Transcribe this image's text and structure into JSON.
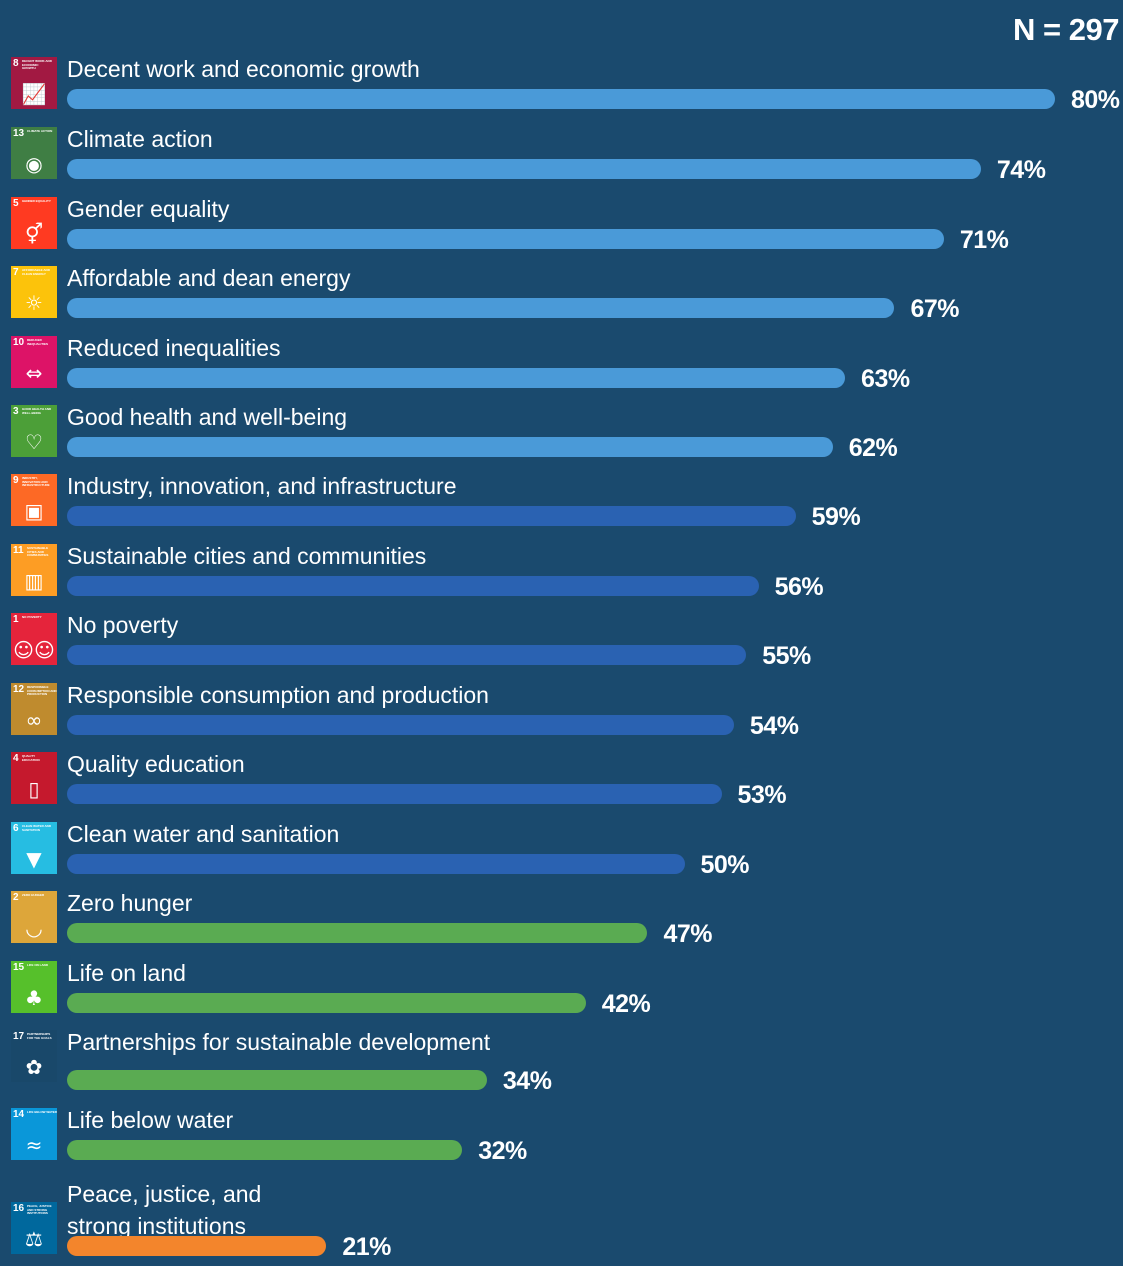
{
  "n_label": "N = 297",
  "colors": {
    "background": "#1a4a6e",
    "light_blue": "#4a9ad8",
    "dark_blue": "#2a62b2",
    "green": "#5aab52",
    "orange": "#f3852c"
  },
  "chart_data": {
    "type": "bar",
    "orientation": "horizontal",
    "title": "",
    "xlabel": "",
    "ylabel": "",
    "xlim": [
      0,
      100
    ],
    "unit": "%",
    "annotation": "N = 297",
    "categories": [
      "Decent work and economic growth",
      "Climate action",
      "Gender equality",
      "Affordable and dean energy",
      "Reduced inequalities",
      "Good health and well-being",
      "Industry, innovation, and infrastructure",
      "Sustainable cities and communities",
      "No poverty",
      "Responsible consumption and production",
      "Quality education",
      "Clean water and sanitation",
      "Zero hunger",
      "Life on land",
      "Partnerships for sustainable development",
      "Life below water",
      "Peace, justice, and\nstrong institutions"
    ],
    "values": [
      80,
      74,
      71,
      67,
      63,
      62,
      59,
      56,
      55,
      54,
      53,
      50,
      47,
      42,
      34,
      32,
      21
    ],
    "value_labels": [
      "80%",
      "74%",
      "71%",
      "67%",
      "63%",
      "62%",
      "59%",
      "56%",
      "55%",
      "54%",
      "53%",
      "50%",
      "47%",
      "42%",
      "34%",
      "32%",
      "21%"
    ],
    "bar_colors": [
      "light_blue",
      "light_blue",
      "light_blue",
      "light_blue",
      "light_blue",
      "light_blue",
      "dark_blue",
      "dark_blue",
      "dark_blue",
      "dark_blue",
      "dark_blue",
      "dark_blue",
      "green",
      "green",
      "green",
      "green",
      "orange"
    ]
  },
  "sdg_icons": [
    {
      "number": "8",
      "name": "DECENT WORK AND ECONOMIC GROWTH",
      "color": "#a21942",
      "glyph": "📈",
      "icon": "growth-chart-icon"
    },
    {
      "number": "13",
      "name": "CLIMATE ACTION",
      "color": "#3f7e44",
      "glyph": "◉",
      "icon": "eye-globe-icon"
    },
    {
      "number": "5",
      "name": "GENDER EQUALITY",
      "color": "#ff3a21",
      "glyph": "⚥",
      "icon": "gender-icon"
    },
    {
      "number": "7",
      "name": "AFFORDABLE AND CLEAN ENERGY",
      "color": "#fcc30b",
      "glyph": "☼",
      "icon": "sun-power-icon"
    },
    {
      "number": "10",
      "name": "REDUCED INEQUALITIES",
      "color": "#dd1367",
      "glyph": "⇔",
      "icon": "equality-arrows-icon"
    },
    {
      "number": "3",
      "name": "GOOD HEALTH AND WELL-BEING",
      "color": "#4c9f38",
      "glyph": "♡",
      "icon": "heartbeat-icon"
    },
    {
      "number": "9",
      "name": "INDUSTRY, INNOVATION AND INFRASTRUCTURE",
      "color": "#fd6925",
      "glyph": "▣",
      "icon": "cubes-icon"
    },
    {
      "number": "11",
      "name": "SUSTAINABLE CITIES AND COMMUNITIES",
      "color": "#fd9d24",
      "glyph": "▥",
      "icon": "buildings-icon"
    },
    {
      "number": "1",
      "name": "NO POVERTY",
      "color": "#e5243b",
      "glyph": "☺☺",
      "icon": "family-icon"
    },
    {
      "number": "12",
      "name": "RESPONSIBLE CONSUMPTION AND PRODUCTION",
      "color": "#bf8b2e",
      "glyph": "∞",
      "icon": "infinity-icon"
    },
    {
      "number": "4",
      "name": "QUALITY EDUCATION",
      "color": "#c5192d",
      "glyph": "▯",
      "icon": "book-pencil-icon"
    },
    {
      "number": "6",
      "name": "CLEAN WATER AND SANITATION",
      "color": "#26bde2",
      "glyph": "▼",
      "icon": "water-glass-icon"
    },
    {
      "number": "2",
      "name": "ZERO HUNGER",
      "color": "#dda63a",
      "glyph": "◡",
      "icon": "bowl-icon"
    },
    {
      "number": "15",
      "name": "LIFE ON LAND",
      "color": "#56c02b",
      "glyph": "♣",
      "icon": "tree-bird-icon"
    },
    {
      "number": "17",
      "name": "PARTNERSHIPS FOR THE GOALS",
      "color": "#19486a",
      "glyph": "✿",
      "icon": "rings-icon"
    },
    {
      "number": "14",
      "name": "LIFE BELOW WATER",
      "color": "#0a97d9",
      "glyph": "≈",
      "icon": "fish-waves-icon"
    },
    {
      "number": "16",
      "name": "PEACE, JUSTICE AND STRONG INSTITUTIONS",
      "color": "#00689d",
      "glyph": "⚖",
      "icon": "dove-gavel-icon"
    }
  ]
}
